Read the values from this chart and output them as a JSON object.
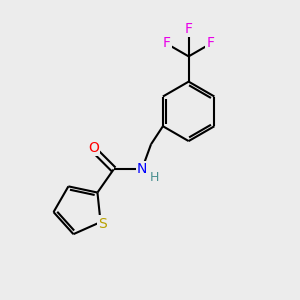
{
  "background_color": "#ececec",
  "bond_color": "#000000",
  "atom_colors": {
    "O": "#ff0000",
    "N": "#0000ff",
    "S": "#b8a000",
    "F": "#e800e8",
    "H": "#4a9090",
    "C": "#000000"
  },
  "figsize": [
    3.0,
    3.0
  ],
  "dpi": 100
}
